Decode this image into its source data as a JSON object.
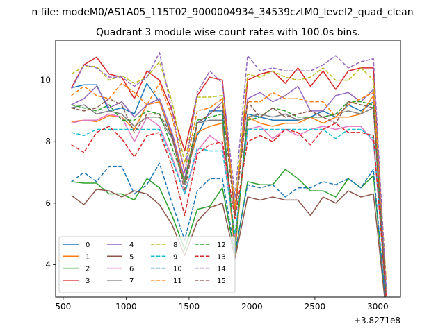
{
  "figure": {
    "suptitle": "n file: modeM0/AS1A05_115T02_9000004934_34539cztM0_level2_quad_clean",
    "title": "Quadrant 3 module wise count rates with 100.0s bins.",
    "offset_label": "+3.8271e8"
  },
  "chart_data": {
    "type": "line",
    "title": "Quadrant 3 module wise count rates with 100.0s bins.",
    "xlabel": "",
    "ylabel": "",
    "xlim": [
      440,
      3180
    ],
    "ylim": [
      2.95,
      11.3
    ],
    "x_ticks": [
      500,
      1000,
      1500,
      2000,
      2500,
      3000
    ],
    "x_tick_labels": [
      "500",
      "1000",
      "1500",
      "2000",
      "2500",
      "3000"
    ],
    "y_ticks": [
      4,
      6,
      8,
      10
    ],
    "y_tick_labels": [
      "4",
      "6",
      "8",
      "10"
    ],
    "grid": false,
    "legend": {
      "placement": "bottom-left",
      "columns": 4
    },
    "x": [
      565,
      665,
      765,
      865,
      965,
      1065,
      1165,
      1265,
      1365,
      1465,
      1565,
      1665,
      1765,
      1865,
      1965,
      2065,
      2165,
      2265,
      2365,
      2465,
      2565,
      2665,
      2765,
      2865,
      2965,
      3065
    ],
    "series": [
      {
        "name": "0",
        "color": "#1f77b4",
        "dash": "solid",
        "values": [
          9.75,
          9.85,
          9.85,
          9.0,
          9.1,
          8.9,
          9.9,
          9.3,
          8.1,
          6.8,
          8.2,
          9.0,
          9.0,
          4.5,
          8.9,
          8.8,
          8.7,
          8.7,
          8.7,
          8.8,
          9.0,
          8.8,
          9.2,
          9.0,
          9.3,
          2.6
        ]
      },
      {
        "name": "1",
        "color": "#ff7f0e",
        "dash": "solid",
        "values": [
          8.65,
          8.7,
          8.65,
          8.85,
          8.8,
          8.4,
          9.2,
          9.3,
          8.2,
          6.7,
          8.3,
          8.5,
          8.6,
          4.4,
          8.8,
          8.6,
          8.5,
          8.6,
          8.6,
          8.8,
          8.6,
          8.8,
          8.8,
          8.9,
          9.5,
          3.2
        ]
      },
      {
        "name": "2",
        "color": "#2ca02c",
        "dash": "solid",
        "values": [
          6.7,
          6.65,
          6.65,
          6.3,
          6.3,
          6.1,
          6.8,
          6.5,
          5.6,
          4.5,
          5.8,
          5.9,
          6.5,
          4.3,
          6.7,
          6.6,
          6.6,
          7.1,
          6.8,
          6.4,
          6.4,
          6.2,
          6.8,
          6.5,
          6.9,
          2.6
        ]
      },
      {
        "name": "3",
        "color": "#d62728",
        "dash": "solid",
        "values": [
          9.75,
          10.5,
          10.75,
          10.2,
          10.1,
          9.4,
          10.3,
          10.0,
          9.0,
          7.7,
          9.5,
          10.1,
          10.0,
          5.6,
          10.0,
          10.2,
          10.3,
          9.9,
          10.4,
          9.8,
          10.3,
          9.7,
          10.3,
          10.4,
          10.4,
          3.0
        ]
      },
      {
        "name": "4",
        "color": "#9467bd",
        "dash": "solid",
        "values": [
          9.2,
          9.4,
          9.8,
          9.1,
          9.3,
          8.8,
          9.2,
          9.4,
          8.3,
          6.8,
          8.6,
          8.9,
          9.3,
          5.9,
          9.4,
          9.6,
          9.3,
          9.5,
          9.8,
          9.0,
          9.0,
          9.5,
          9.6,
          9.3,
          9.7,
          3.2
        ]
      },
      {
        "name": "5",
        "color": "#8c564b",
        "dash": "solid",
        "values": [
          6.25,
          5.95,
          6.45,
          6.4,
          6.2,
          6.4,
          6.3,
          5.95,
          5.3,
          4.3,
          5.4,
          5.85,
          6.0,
          4.2,
          6.2,
          6.1,
          6.2,
          6.1,
          6.1,
          5.6,
          6.2,
          6.0,
          6.4,
          6.2,
          6.3,
          2.5
        ]
      },
      {
        "name": "6",
        "color": "#e377c2",
        "dash": "solid",
        "values": [
          8.6,
          8.7,
          8.7,
          8.9,
          8.8,
          8.0,
          8.8,
          8.5,
          7.5,
          6.3,
          7.7,
          8.2,
          7.9,
          4.9,
          8.4,
          8.5,
          8.1,
          8.4,
          8.2,
          8.4,
          8.5,
          8.4,
          8.5,
          8.5,
          8.0,
          3.3
        ]
      },
      {
        "name": "7",
        "color": "#7f7f7f",
        "dash": "solid",
        "values": [
          9.1,
          9.2,
          8.9,
          9.0,
          8.9,
          8.5,
          8.8,
          8.8,
          8.1,
          6.6,
          8.6,
          8.7,
          8.7,
          4.6,
          8.8,
          8.9,
          8.8,
          8.9,
          8.7,
          8.8,
          8.8,
          8.9,
          9.0,
          8.9,
          9.1,
          2.7
        ]
      },
      {
        "name": "8",
        "color": "#bcbd22",
        "dash": "dash",
        "values": [
          10.2,
          10.45,
          10.45,
          10.0,
          10.15,
          9.9,
          10.1,
          10.6,
          9.3,
          7.3,
          9.45,
          9.45,
          9.5,
          5.8,
          10.2,
          10.1,
          10.3,
          10.1,
          10.0,
          10.1,
          10.4,
          10.0,
          10.0,
          10.4,
          10.0,
          3.6
        ]
      },
      {
        "name": "9",
        "color": "#17becf",
        "dash": "dash",
        "values": [
          8.3,
          8.2,
          8.4,
          8.4,
          8.4,
          8.4,
          8.4,
          8.4,
          7.4,
          6.3,
          7.8,
          7.7,
          7.7,
          5.0,
          8.4,
          8.4,
          8.4,
          8.4,
          8.4,
          8.4,
          8.4,
          8.1,
          8.4,
          8.4,
          8.1,
          3.3
        ]
      },
      {
        "name": "10",
        "color": "#1f77b4",
        "dash": "dash",
        "values": [
          6.7,
          7.0,
          6.7,
          7.2,
          7.2,
          6.3,
          6.6,
          7.3,
          6.0,
          4.8,
          6.4,
          6.8,
          6.8,
          4.4,
          6.6,
          6.5,
          6.6,
          6.2,
          6.5,
          6.5,
          6.7,
          6.6,
          6.8,
          6.5,
          7.1,
          2.6
        ]
      },
      {
        "name": "11",
        "color": "#ff7f0e",
        "dash": "dash",
        "values": [
          9.5,
          9.8,
          9.5,
          9.4,
          9.9,
          9.6,
          9.2,
          9.9,
          8.8,
          7.0,
          9.0,
          9.1,
          9.4,
          5.9,
          9.3,
          9.3,
          9.6,
          9.4,
          9.4,
          9.3,
          9.3,
          8.8,
          9.2,
          9.4,
          9.6,
          3.5
        ]
      },
      {
        "name": "12",
        "color": "#2ca02c",
        "dash": "dash",
        "values": [
          9.2,
          9.1,
          9.0,
          9.2,
          8.7,
          8.7,
          9.0,
          8.9,
          7.8,
          6.7,
          8.7,
          8.8,
          8.9,
          4.6,
          8.7,
          8.8,
          9.1,
          9.0,
          8.8,
          8.8,
          8.8,
          8.9,
          9.3,
          9.3,
          9.2,
          3.1
        ]
      },
      {
        "name": "13",
        "color": "#d62728",
        "dash": "dash",
        "values": [
          7.9,
          7.65,
          8.3,
          8.5,
          8.1,
          7.5,
          8.2,
          8.3,
          7.2,
          5.6,
          7.6,
          7.9,
          8.0,
          5.5,
          8.0,
          8.2,
          8.0,
          8.4,
          8.3,
          7.9,
          8.4,
          8.6,
          8.3,
          8.3,
          8.2,
          3.0
        ]
      },
      {
        "name": "14",
        "color": "#9467bd",
        "dash": "dash",
        "values": [
          9.7,
          10.5,
          10.4,
          10.1,
          10.1,
          9.8,
          10.1,
          10.9,
          9.0,
          7.0,
          9.6,
          10.3,
          9.9,
          6.2,
          10.8,
          10.3,
          10.4,
          10.3,
          10.3,
          10.3,
          10.5,
          10.8,
          10.4,
          10.6,
          10.7,
          3.3
        ]
      },
      {
        "name": "15",
        "color": "#8c564b",
        "dash": "dash",
        "values": [
          9.1,
          9.0,
          9.1,
          9.4,
          9.2,
          8.3,
          8.9,
          8.9,
          8.2,
          6.4,
          8.6,
          8.9,
          9.2,
          5.6,
          9.3,
          8.8,
          9.1,
          8.8,
          8.9,
          9.0,
          8.8,
          8.6,
          9.3,
          9.2,
          9.1,
          3.1
        ]
      }
    ]
  }
}
